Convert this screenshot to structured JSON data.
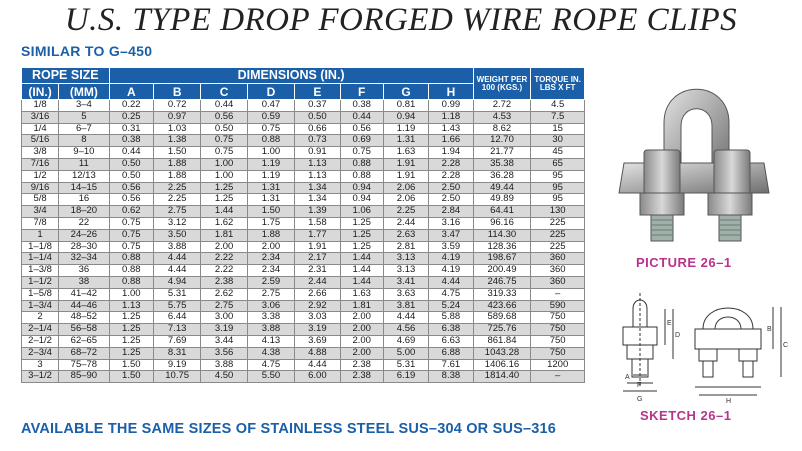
{
  "title": "U.S. TYPE DROP FORGED WIRE ROPE CLIPS",
  "subtitle": "SIMILAR TO G–450",
  "footer": "AVAILABLE THE SAME SIZES OF STAINLESS STEEL SUS–304 OR SUS–316",
  "table": {
    "group_headers": {
      "rope_size": "ROPE SIZE",
      "dimensions": "DIMENSIONS (IN.)",
      "weight": "WEIGHT PER 100 (KGS.)",
      "torque": "TORQUE IN. LBS X FT"
    },
    "columns": [
      "(IN.)",
      "(MM)",
      "A",
      "B",
      "C",
      "D",
      "E",
      "F",
      "G",
      "H"
    ],
    "rows": [
      [
        "1/8",
        "3–4",
        "0.22",
        "0.72",
        "0.44",
        "0.47",
        "0.37",
        "0.38",
        "0.81",
        "0.99",
        "2.72",
        "4.5"
      ],
      [
        "3/16",
        "5",
        "0.25",
        "0.97",
        "0.56",
        "0.59",
        "0.50",
        "0.44",
        "0.94",
        "1.18",
        "4.53",
        "7.5"
      ],
      [
        "1/4",
        "6–7",
        "0.31",
        "1.03",
        "0.50",
        "0.75",
        "0.66",
        "0.56",
        "1.19",
        "1.43",
        "8.62",
        "15"
      ],
      [
        "5/16",
        "8",
        "0.38",
        "1.38",
        "0.75",
        "0.88",
        "0.73",
        "0.69",
        "1.31",
        "1.66",
        "12.70",
        "30"
      ],
      [
        "3/8",
        "9–10",
        "0.44",
        "1.50",
        "0.75",
        "1.00",
        "0.91",
        "0.75",
        "1.63",
        "1.94",
        "21.77",
        "45"
      ],
      [
        "7/16",
        "11",
        "0.50",
        "1.88",
        "1.00",
        "1.19",
        "1.13",
        "0.88",
        "1.91",
        "2.28",
        "35.38",
        "65"
      ],
      [
        "1/2",
        "12/13",
        "0.50",
        "1.88",
        "1.00",
        "1.19",
        "1.13",
        "0.88",
        "1.91",
        "2.28",
        "36.28",
        "95"
      ],
      [
        "9/16",
        "14–15",
        "0.56",
        "2.25",
        "1.25",
        "1.31",
        "1.34",
        "0.94",
        "2.06",
        "2.50",
        "49.44",
        "95"
      ],
      [
        "5/8",
        "16",
        "0.56",
        "2.25",
        "1.25",
        "1.31",
        "1.34",
        "0.94",
        "2.06",
        "2.50",
        "49.89",
        "95"
      ],
      [
        "3/4",
        "18–20",
        "0.62",
        "2.75",
        "1.44",
        "1.50",
        "1.39",
        "1.06",
        "2.25",
        "2.84",
        "64.41",
        "130"
      ],
      [
        "7/8",
        "22",
        "0.75",
        "3.12",
        "1.62",
        "1.75",
        "1.58",
        "1.25",
        "2.44",
        "3.16",
        "96.16",
        "225"
      ],
      [
        "1",
        "24–26",
        "0.75",
        "3.50",
        "1.81",
        "1.88",
        "1.77",
        "1.25",
        "2.63",
        "3.47",
        "114.30",
        "225"
      ],
      [
        "1–1/8",
        "28–30",
        "0.75",
        "3.88",
        "2.00",
        "2.00",
        "1.91",
        "1.25",
        "2.81",
        "3.59",
        "128.36",
        "225"
      ],
      [
        "1–1/4",
        "32–34",
        "0.88",
        "4.44",
        "2.22",
        "2.34",
        "2.17",
        "1.44",
        "3.13",
        "4.19",
        "198.67",
        "360"
      ],
      [
        "1–3/8",
        "36",
        "0.88",
        "4.44",
        "2.22",
        "2.34",
        "2.31",
        "1.44",
        "3.13",
        "4.19",
        "200.49",
        "360"
      ],
      [
        "1–1/2",
        "38",
        "0.88",
        "4.94",
        "2.38",
        "2.59",
        "2.44",
        "1.44",
        "3.41",
        "4.44",
        "246.75",
        "360"
      ],
      [
        "1–5/8",
        "41–42",
        "1.00",
        "5.31",
        "2.62",
        "2.75",
        "2.66",
        "1.63",
        "3.63",
        "4.75",
        "319.33",
        "–"
      ],
      [
        "1–3/4",
        "44–46",
        "1.13",
        "5.75",
        "2.75",
        "3.06",
        "2.92",
        "1.81",
        "3.81",
        "5.24",
        "423.66",
        "590"
      ],
      [
        "2",
        "48–52",
        "1.25",
        "6.44",
        "3.00",
        "3.38",
        "3.03",
        "2.00",
        "4.44",
        "5.88",
        "589.68",
        "750"
      ],
      [
        "2–1/4",
        "56–58",
        "1.25",
        "7.13",
        "3.19",
        "3.88",
        "3.19",
        "2.00",
        "4.56",
        "6.38",
        "725.76",
        "750"
      ],
      [
        "2–1/2",
        "62–65",
        "1.25",
        "7.69",
        "3.44",
        "4.13",
        "3.69",
        "2.00",
        "4.69",
        "6.63",
        "861.84",
        "750"
      ],
      [
        "2–3/4",
        "68–72",
        "1.25",
        "8.31",
        "3.56",
        "4.38",
        "4.88",
        "2.00",
        "5.00",
        "6.88",
        "1043.28",
        "750"
      ],
      [
        "3",
        "75–78",
        "1.50",
        "9.19",
        "3.88",
        "4.75",
        "4.44",
        "2.38",
        "5.31",
        "7.61",
        "1406.16",
        "1200"
      ],
      [
        "3–1/2",
        "85–90",
        "1.50",
        "10.75",
        "4.50",
        "5.50",
        "6.00",
        "2.38",
        "6.19",
        "8.38",
        "1814.40",
        "–"
      ]
    ]
  },
  "picture_caption": "PICTURE 26–1",
  "sketch_caption": "SKETCH  26–1",
  "sketch_labels": [
    "E",
    "D",
    "A",
    "F",
    "G",
    "B",
    "C",
    "H"
  ],
  "colors": {
    "header_blue": "#1a5fa8",
    "caption_magenta": "#b8338a",
    "row_gray": "#d9d9d9"
  }
}
